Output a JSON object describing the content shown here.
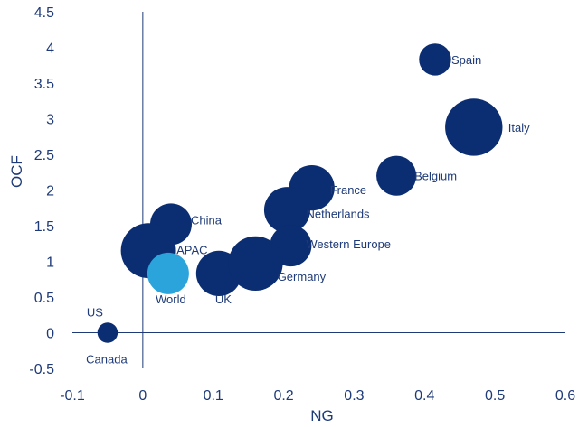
{
  "chart_data": {
    "type": "scatter",
    "subtype": "bubble",
    "title": "",
    "xlabel": "NG",
    "ylabel": "OCF",
    "xlim": [
      -0.1,
      0.6
    ],
    "ylim": [
      -0.5,
      4.5
    ],
    "x_ticks": [
      "-0.1",
      "0",
      "0.1",
      "0.2",
      "0.3",
      "0.4",
      "0.5",
      "0.6"
    ],
    "y_ticks": [
      "4.5",
      "4",
      "3.5",
      "3",
      "2.5",
      "2",
      "1.5",
      "1",
      "0.5",
      "0",
      "-0.5"
    ],
    "grid": false,
    "legend": "none",
    "colors": {
      "primary": "#0b2d71",
      "highlight": "#2ba3db",
      "axis": "#1e3a78"
    },
    "points": [
      {
        "label": "Spain",
        "x": 0.415,
        "y": 3.83,
        "size": 0.5,
        "color": "primary"
      },
      {
        "label": "Italy",
        "x": 0.47,
        "y": 2.88,
        "size": 2.2,
        "color": "primary"
      },
      {
        "label": "Belgium",
        "x": 0.36,
        "y": 2.2,
        "size": 0.9,
        "color": "primary"
      },
      {
        "label": "France",
        "x": 0.24,
        "y": 2.03,
        "size": 1.25,
        "color": "primary"
      },
      {
        "label": "Netherlands",
        "x": 0.205,
        "y": 1.72,
        "size": 1.3,
        "color": "primary"
      },
      {
        "label": "Western Europe",
        "x": 0.21,
        "y": 1.22,
        "size": 1.0,
        "color": "primary"
      },
      {
        "label": "China",
        "x": 0.04,
        "y": 1.52,
        "size": 1.0,
        "color": "primary"
      },
      {
        "label": "APAC",
        "x": 0.008,
        "y": 1.15,
        "size": 2.0,
        "color": "primary"
      },
      {
        "label": "World",
        "x": 0.036,
        "y": 0.83,
        "size": 1.0,
        "color": "highlight"
      },
      {
        "label": "UK",
        "x": 0.108,
        "y": 0.83,
        "size": 1.25,
        "color": "primary"
      },
      {
        "label": "Germany",
        "x": 0.16,
        "y": 0.97,
        "size": 1.95,
        "color": "primary"
      },
      {
        "label": "US",
        "x": -0.05,
        "y": 0.0,
        "size": 0.12,
        "color": "primary"
      },
      {
        "label": "Canada",
        "x": -0.05,
        "y": 0.0,
        "size": 0.12,
        "color": "primary"
      }
    ]
  }
}
